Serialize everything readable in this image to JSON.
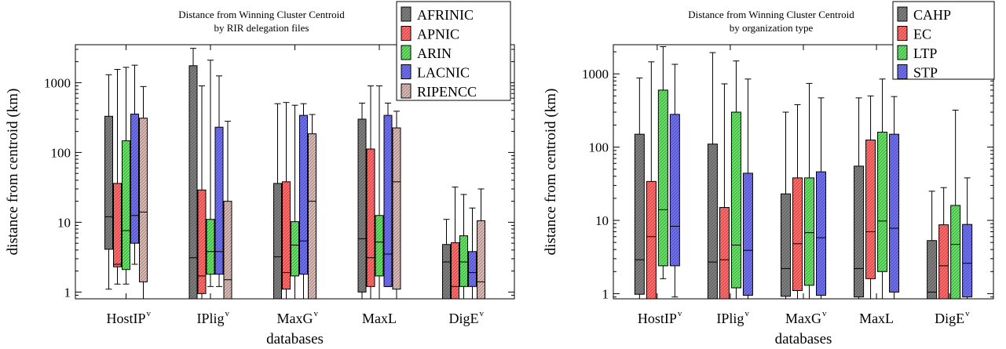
{
  "chart_data": [
    {
      "type": "box",
      "title_lines": [
        "Distance from Winning Cluster Centroid",
        "by RIR delegation files"
      ],
      "xlabel": "databases",
      "ylabel": "distance from centroid (km)",
      "yscale": "log",
      "ylim": [
        0.8,
        3500
      ],
      "yticks": [
        {
          "v": 1,
          "label": "1"
        },
        {
          "v": 10,
          "label": "10"
        },
        {
          "v": 100,
          "label": "100"
        },
        {
          "v": 1000,
          "label": "1000"
        }
      ],
      "categories": [
        {
          "name": "HostIP",
          "sup": "v"
        },
        {
          "name": "IPlig",
          "sup": "v"
        },
        {
          "name": "MaxG",
          "sup": "v"
        },
        {
          "name": "MaxL",
          "sup": ""
        },
        {
          "name": "DigE",
          "sup": "v"
        }
      ],
      "legend_position": "top-right",
      "series": [
        {
          "name": "AFRINIC",
          "color": "#7f7f7f",
          "boxes": [
            {
              "lo": 1.1,
              "q1": 4.1,
              "med": 12,
              "q3": 330,
              "hi": 1300
            },
            {
              "lo": 0.8,
              "q1": 0.8,
              "med": 3.1,
              "q3": 1750,
              "hi": 3100
            },
            {
              "lo": 0.8,
              "q1": 0.8,
              "med": 3.2,
              "q3": 36,
              "hi": 500
            },
            {
              "lo": 0.8,
              "q1": 1.0,
              "med": 5.8,
              "q3": 300,
              "hi": 510
            },
            {
              "lo": 0.8,
              "q1": 0.8,
              "med": 2.7,
              "q3": 4.8,
              "hi": 11
            }
          ]
        },
        {
          "name": "APNIC",
          "color": "#ff6b6b",
          "boxes": [
            {
              "lo": 1.3,
              "q1": 2.3,
              "med": 2.5,
              "q3": 36,
              "hi": 1550
            },
            {
              "lo": 0.8,
              "q1": 0.95,
              "med": 1.7,
              "q3": 29,
              "hi": 900
            },
            {
              "lo": 0.8,
              "q1": 1.1,
              "med": 1.9,
              "q3": 38,
              "hi": 520
            },
            {
              "lo": 0.8,
              "q1": 1.2,
              "med": 3.1,
              "q3": 112,
              "hi": 900
            },
            {
              "lo": 0.8,
              "q1": 0.8,
              "med": 1.2,
              "q3": 5.1,
              "hi": 32
            }
          ]
        },
        {
          "name": "ARIN",
          "color": "#66e066",
          "boxes": [
            {
              "lo": 1.3,
              "q1": 2.1,
              "med": 7.6,
              "q3": 147,
              "hi": 1660
            },
            {
              "lo": 1.2,
              "q1": 1.8,
              "med": 3.8,
              "q3": 11,
              "hi": 2100
            },
            {
              "lo": 0.8,
              "q1": 1.7,
              "med": 4.7,
              "q3": 10.2,
              "hi": 475
            },
            {
              "lo": 0.8,
              "q1": 1.7,
              "med": 5.2,
              "q3": 12.5,
              "hi": 900
            },
            {
              "lo": 0.8,
              "q1": 1.2,
              "med": 2.7,
              "q3": 6.4,
              "hi": 25
            }
          ]
        },
        {
          "name": "LACNIC",
          "color": "#7070ee",
          "boxes": [
            {
              "lo": 2.5,
              "q1": 5.0,
              "med": 12.5,
              "q3": 355,
              "hi": 1780
            },
            {
              "lo": 1.2,
              "q1": 1.8,
              "med": 3.8,
              "q3": 230,
              "hi": 1250
            },
            {
              "lo": 0.8,
              "q1": 1.8,
              "med": 5.4,
              "q3": 340,
              "hi": 500
            },
            {
              "lo": 1.2,
              "q1": 1.2,
              "med": 3.5,
              "q3": 340,
              "hi": 510
            },
            {
              "lo": 0.8,
              "q1": 1.2,
              "med": 1.9,
              "q3": 3.8,
              "hi": 16
            }
          ]
        },
        {
          "name": "RIPENCC",
          "color": "#d9b9b4",
          "boxes": [
            {
              "lo": 0.8,
              "q1": 1.4,
              "med": 14,
              "q3": 310,
              "hi": 880
            },
            {
              "lo": 0.8,
              "q1": 0.8,
              "med": 1.5,
              "q3": 20,
              "hi": 280
            },
            {
              "lo": 0.8,
              "q1": 0.8,
              "med": 20,
              "q3": 185,
              "hi": 350
            },
            {
              "lo": 0.8,
              "q1": 1.1,
              "med": 38,
              "q3": 225,
              "hi": 390
            },
            {
              "lo": 0.8,
              "q1": 0.8,
              "med": 1.4,
              "q3": 10.5,
              "hi": 30
            }
          ]
        }
      ]
    },
    {
      "type": "box",
      "title_lines": [
        "Distance from Winning Cluster Centroid",
        "by organization type"
      ],
      "xlabel": "databases",
      "ylabel": "distance from centroid (km)",
      "yscale": "log",
      "ylim": [
        0.85,
        2500
      ],
      "yticks": [
        {
          "v": 1,
          "label": "1"
        },
        {
          "v": 10,
          "label": "10"
        },
        {
          "v": 100,
          "label": "100"
        },
        {
          "v": 1000,
          "label": "1000"
        }
      ],
      "categories": [
        {
          "name": "HostIP",
          "sup": "v"
        },
        {
          "name": "IPlig",
          "sup": "v"
        },
        {
          "name": "MaxG",
          "sup": "v"
        },
        {
          "name": "MaxL",
          "sup": ""
        },
        {
          "name": "DigE",
          "sup": "v"
        }
      ],
      "legend_position": "top-right",
      "series": [
        {
          "name": "CAHP",
          "color": "#7f7f7f",
          "boxes": [
            {
              "lo": 0.85,
              "q1": 0.98,
              "med": 2.9,
              "q3": 150,
              "hi": 880
            },
            {
              "lo": 0.85,
              "q1": 0.85,
              "med": 2.7,
              "q3": 110,
              "hi": 1950
            },
            {
              "lo": 0.85,
              "q1": 0.92,
              "med": 2.2,
              "q3": 23,
              "hi": 300
            },
            {
              "lo": 0.85,
              "q1": 0.9,
              "med": 2.2,
              "q3": 55,
              "hi": 470
            },
            {
              "lo": 0.85,
              "q1": 0.85,
              "med": 1.05,
              "q3": 5.3,
              "hi": 25
            }
          ]
        },
        {
          "name": "EC",
          "color": "#ff6b6b",
          "boxes": [
            {
              "lo": 0.85,
              "q1": 0.85,
              "med": 6.0,
              "q3": 34,
              "hi": 1460
            },
            {
              "lo": 0.85,
              "q1": 0.85,
              "med": 2.9,
              "q3": 15,
              "hi": 730
            },
            {
              "lo": 0.85,
              "q1": 1.1,
              "med": 4.8,
              "q3": 38,
              "hi": 380
            },
            {
              "lo": 0.85,
              "q1": 1.6,
              "med": 7.0,
              "q3": 125,
              "hi": 500
            },
            {
              "lo": 0.85,
              "q1": 0.85,
              "med": 2.4,
              "q3": 8.7,
              "hi": 28
            }
          ]
        },
        {
          "name": "LTP",
          "color": "#66e066",
          "boxes": [
            {
              "lo": 1.6,
              "q1": 2.4,
              "med": 14,
              "q3": 600,
              "hi": 2350
            },
            {
              "lo": 0.85,
              "q1": 1.2,
              "med": 4.6,
              "q3": 300,
              "hi": 1500
            },
            {
              "lo": 0.85,
              "q1": 1.3,
              "med": 6.8,
              "q3": 38,
              "hi": 740
            },
            {
              "lo": 0.85,
              "q1": 2.0,
              "med": 9.8,
              "q3": 160,
              "hi": 850
            },
            {
              "lo": 0.85,
              "q1": 0.85,
              "med": 4.7,
              "q3": 16,
              "hi": 320
            }
          ]
        },
        {
          "name": "STP",
          "color": "#7070ee",
          "boxes": [
            {
              "lo": 0.9,
              "q1": 2.4,
              "med": 8.3,
              "q3": 280,
              "hi": 1350
            },
            {
              "lo": 0.85,
              "q1": 0.95,
              "med": 3.9,
              "q3": 44,
              "hi": 850
            },
            {
              "lo": 0.85,
              "q1": 0.95,
              "med": 5.8,
              "q3": 46,
              "hi": 470
            },
            {
              "lo": 0.85,
              "q1": 1.05,
              "med": 7.8,
              "q3": 150,
              "hi": 490
            },
            {
              "lo": 0.85,
              "q1": 0.9,
              "med": 2.6,
              "q3": 8.8,
              "hi": 38
            }
          ]
        }
      ]
    }
  ]
}
